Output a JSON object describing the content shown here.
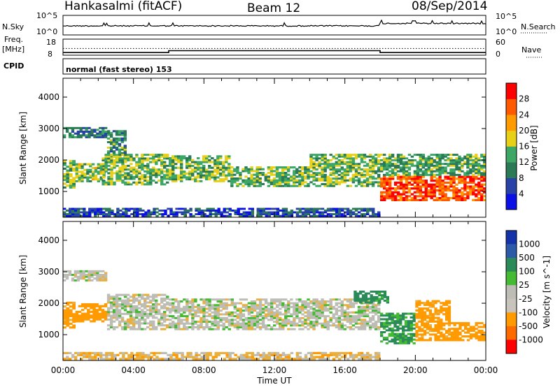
{
  "header": {
    "station": "Hankasalmi (fitACF)",
    "beam": "Beam 12",
    "date": "08/Sep/2014",
    "program": "normal (fast stereo) 153"
  },
  "side_labels": {
    "nsky": "N.Sky",
    "nsearch": "N.Search",
    "freq_line1": "Freq.",
    "freq_line2": "[MHz]",
    "nave": "Nave",
    "cpid": "CPID"
  },
  "noise_panel": {
    "left_ticks": [
      "10^5",
      "10^0"
    ],
    "right_ticks": [
      "10^5",
      "10^0"
    ]
  },
  "freq_panel": {
    "left_ticks": [
      "18",
      "8"
    ],
    "right_ticks": [
      "60",
      "0"
    ],
    "nave_steps": [
      {
        "from": 0.0,
        "to": 6.0,
        "value": 10
      },
      {
        "from": 6.0,
        "to": 18.0,
        "value": 17
      },
      {
        "from": 18.0,
        "to": 24.0,
        "value": 10
      }
    ],
    "freq_level": 12.2
  },
  "colors": {
    "power_scale": [
      "#0a10e6",
      "#2842a8",
      "#2a7a55",
      "#3da866",
      "#e8d018",
      "#ff9a00",
      "#ff5a00",
      "#ff0000"
    ],
    "velocity_scale": [
      "#1533a8",
      "#2a5aa8",
      "#2a8a58",
      "#44bb33",
      "#bdbdb6",
      "#c8c4bc",
      "#ff9a00",
      "#ff6a00",
      "#ff0000"
    ],
    "ground_scatter": "#bdbdb6"
  },
  "chart_data": [
    {
      "type": "heatmap",
      "panel": "power",
      "xlabel": "",
      "ylabel": "Slant Range [km]",
      "xlim": [
        0,
        24
      ],
      "ylim": [
        180,
        4600
      ],
      "y_ticks": [
        1000,
        2000,
        3000,
        4000
      ],
      "colorbar": {
        "label": "Power [dB]",
        "range": [
          0,
          32
        ],
        "ticks": [
          4,
          8,
          12,
          16,
          20,
          24,
          28
        ]
      },
      "echo_bands": [
        {
          "start": 0.0,
          "end": 0.7,
          "lower": 1100,
          "upper": 2000,
          "value": 14
        },
        {
          "start": 0.7,
          "end": 2.4,
          "lower": 1300,
          "upper": 1900,
          "value": 16
        },
        {
          "start": 0.0,
          "end": 2.5,
          "lower": 2700,
          "upper": 3050,
          "value": 9
        },
        {
          "start": 2.5,
          "end": 3.6,
          "lower": 1900,
          "upper": 2950,
          "value": 12
        },
        {
          "start": 2.2,
          "end": 6.0,
          "lower": 1200,
          "upper": 2200,
          "value": 15
        },
        {
          "start": 6.0,
          "end": 9.5,
          "lower": 1300,
          "upper": 2150,
          "value": 14
        },
        {
          "start": 9.5,
          "end": 14.0,
          "lower": 1150,
          "upper": 1800,
          "value": 14
        },
        {
          "start": 14.0,
          "end": 18.0,
          "lower": 1150,
          "upper": 2200,
          "value": 15
        },
        {
          "start": 18.0,
          "end": 24.0,
          "lower": 700,
          "upper": 1500,
          "value": 27
        },
        {
          "start": 18.0,
          "end": 24.0,
          "lower": 1500,
          "upper": 2200,
          "value": 13
        },
        {
          "start": 0.0,
          "end": 18.0,
          "lower": 200,
          "upper": 480,
          "value": 6
        }
      ]
    },
    {
      "type": "heatmap",
      "panel": "velocity",
      "xlabel": "Time UT",
      "ylabel": "Slant Range [km]",
      "xlim": [
        0,
        24
      ],
      "ylim": [
        180,
        4600
      ],
      "x_tick_labels": [
        "00:00",
        "04:00",
        "08:00",
        "12:00",
        "16:00",
        "20:00",
        "00:00"
      ],
      "y_ticks": [
        1000,
        2000,
        3000,
        4000
      ],
      "colorbar": {
        "label": "Velocity [m s^-1]",
        "ticks": [
          "1000",
          "500",
          "100",
          "25",
          "-25",
          "-100",
          "-500",
          "-1000"
        ]
      },
      "echo_bands": [
        {
          "start": 0.0,
          "end": 2.5,
          "lower": 2700,
          "upper": 3050,
          "value": 0
        },
        {
          "start": 0.0,
          "end": 0.7,
          "lower": 1200,
          "upper": 2050,
          "value": -150
        },
        {
          "start": 0.7,
          "end": 2.5,
          "lower": 1400,
          "upper": 2000,
          "value": -220
        },
        {
          "start": 2.5,
          "end": 6.0,
          "lower": 1150,
          "upper": 2300,
          "value": 0
        },
        {
          "start": 6.0,
          "end": 18.0,
          "lower": 1150,
          "upper": 2150,
          "value": 0
        },
        {
          "start": 18.0,
          "end": 20.0,
          "lower": 700,
          "upper": 1700,
          "value": 120
        },
        {
          "start": 20.0,
          "end": 22.0,
          "lower": 800,
          "upper": 2100,
          "value": -150
        },
        {
          "start": 22.0,
          "end": 24.0,
          "lower": 800,
          "upper": 1400,
          "value": -200
        },
        {
          "start": 16.5,
          "end": 18.5,
          "lower": 2000,
          "upper": 2400,
          "value": 150
        },
        {
          "start": 0.0,
          "end": 18.0,
          "lower": 200,
          "upper": 450,
          "value": -60
        }
      ]
    }
  ]
}
